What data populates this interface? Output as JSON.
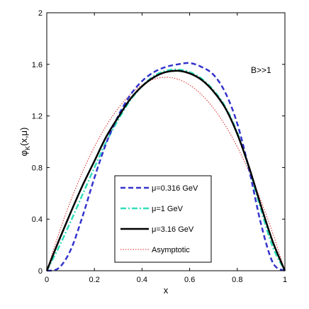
{
  "chart_data": {
    "type": "line",
    "annotation": "B>>1",
    "xlabel": "x",
    "ylabel": "φK(x,μ)",
    "ylabel_main": "φ",
    "ylabel_sub": "K",
    "ylabel_tail": "(x,μ)",
    "xlim": [
      0,
      1
    ],
    "ylim": [
      0,
      2
    ],
    "xticks": [
      "0",
      "0.2",
      "0.4",
      "0.6",
      "0.8",
      "1"
    ],
    "yticks": [
      "0",
      "0.4",
      "0.8",
      "1.2",
      "1.6",
      "2"
    ],
    "grid": false,
    "legend_position": "bottom-center",
    "series": [
      {
        "name": "μ=0.316 GeV",
        "color": "#3333cc",
        "style": "dashed",
        "x": [
          0,
          0.05,
          0.1,
          0.15,
          0.2,
          0.25,
          0.3,
          0.35,
          0.4,
          0.45,
          0.5,
          0.55,
          0.6,
          0.65,
          0.7,
          0.75,
          0.8,
          0.85,
          0.9,
          0.95,
          1
        ],
        "y": [
          0,
          0.02,
          0.16,
          0.42,
          0.72,
          0.99,
          1.2,
          1.36,
          1.47,
          1.54,
          1.58,
          1.6,
          1.61,
          1.58,
          1.52,
          1.38,
          1.14,
          0.78,
          0.36,
          0.06,
          0
        ]
      },
      {
        "name": "μ=1 GeV",
        "color": "#33ddbb",
        "style": "dash-dot",
        "x": [
          0,
          0.05,
          0.1,
          0.15,
          0.2,
          0.25,
          0.3,
          0.35,
          0.4,
          0.45,
          0.5,
          0.55,
          0.6,
          0.65,
          0.7,
          0.75,
          0.8,
          0.85,
          0.9,
          0.95,
          1
        ],
        "y": [
          0,
          0.18,
          0.38,
          0.59,
          0.8,
          1.0,
          1.17,
          1.32,
          1.43,
          1.51,
          1.55,
          1.56,
          1.54,
          1.49,
          1.4,
          1.27,
          1.07,
          0.79,
          0.47,
          0.18,
          0
        ]
      },
      {
        "name": "μ=3.16 GeV",
        "color": "#000000",
        "style": "solid",
        "x": [
          0,
          0.05,
          0.1,
          0.15,
          0.2,
          0.25,
          0.3,
          0.35,
          0.4,
          0.45,
          0.5,
          0.55,
          0.6,
          0.65,
          0.7,
          0.75,
          0.8,
          0.85,
          0.9,
          0.95,
          1
        ],
        "y": [
          0,
          0.23,
          0.45,
          0.66,
          0.85,
          1.04,
          1.19,
          1.33,
          1.43,
          1.5,
          1.54,
          1.55,
          1.53,
          1.48,
          1.39,
          1.26,
          1.06,
          0.8,
          0.5,
          0.22,
          0
        ]
      },
      {
        "name": "Asymptotic",
        "color": "#dd2222",
        "style": "dotted",
        "x": [
          0,
          0.05,
          0.1,
          0.15,
          0.2,
          0.25,
          0.3,
          0.35,
          0.4,
          0.45,
          0.5,
          0.55,
          0.6,
          0.65,
          0.7,
          0.75,
          0.8,
          0.85,
          0.9,
          0.95,
          1
        ],
        "y": [
          0,
          0.285,
          0.54,
          0.765,
          0.96,
          1.125,
          1.26,
          1.365,
          1.44,
          1.485,
          1.5,
          1.485,
          1.44,
          1.365,
          1.26,
          1.125,
          0.96,
          0.765,
          0.54,
          0.285,
          0
        ]
      }
    ]
  }
}
